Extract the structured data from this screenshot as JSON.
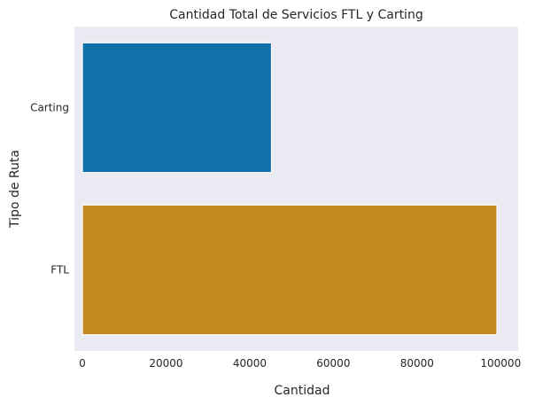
{
  "chart_data": {
    "type": "bar",
    "orientation": "horizontal",
    "title": "Cantidad Total de Servicios FTL y Carting",
    "xlabel": "Cantidad",
    "ylabel": "Tipo de Ruta",
    "categories": [
      "Carting",
      "FTL"
    ],
    "values": [
      45200,
      99100
    ],
    "xlim": [
      0,
      101000
    ],
    "xticks": [
      0,
      20000,
      40000,
      60000,
      80000,
      100000
    ],
    "xtick_labels": [
      "0",
      "20000",
      "40000",
      "60000",
      "80000",
      "100000"
    ],
    "grid": false,
    "colors": {
      "background": "#eaeaf2",
      "bars": [
        "#1170aa",
        "#c38820"
      ],
      "bar_edge": "#ffffff",
      "text": "#262626"
    }
  }
}
